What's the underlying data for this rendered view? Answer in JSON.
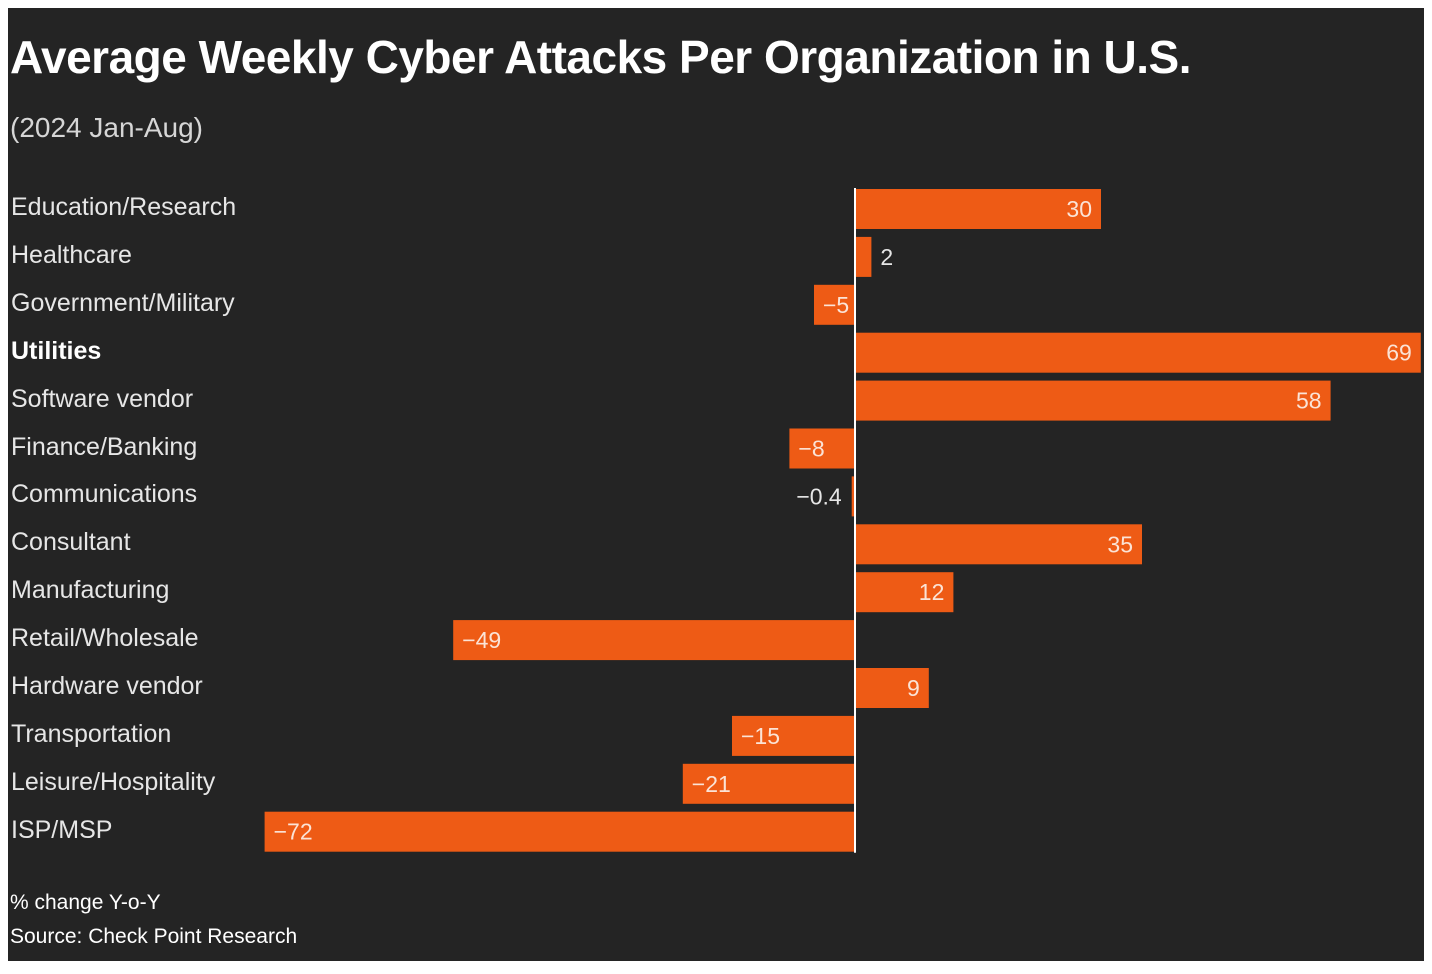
{
  "chart_data": {
    "type": "bar",
    "orientation": "horizontal",
    "title": "Average Weekly Cyber Attacks Per Organization in U.S.",
    "subtitle": "(2024 Jan-Aug)",
    "categories": [
      "Education/Research",
      "Healthcare",
      "Government/Military",
      "Utilities",
      "Software vendor",
      "Finance/Banking",
      "Communications",
      "Consultant",
      "Manufacturing",
      "Retail/Wholesale",
      "Hardware vendor",
      "Transportation",
      "Leisure/Hospitality",
      "ISP/MSP"
    ],
    "values": [
      30,
      2,
      -5,
      69,
      58,
      -8,
      -0.4,
      35,
      12,
      -49,
      9,
      -15,
      -21,
      -72
    ],
    "value_labels": [
      "30",
      "2",
      "−5",
      "69",
      "58",
      "−8",
      "−0.4",
      "35",
      "12",
      "−49",
      "9",
      "−15",
      "−21",
      "−72"
    ],
    "highlighted_category": "Utilities",
    "xlim": [
      -72,
      69
    ],
    "xlabel": "% change Y-o-Y",
    "ylabel": "",
    "grid": false,
    "bar_color": "#ee5b15",
    "background_color": "#242424",
    "note": "% change Y-o-Y",
    "source": "Source: Check Point Research"
  }
}
